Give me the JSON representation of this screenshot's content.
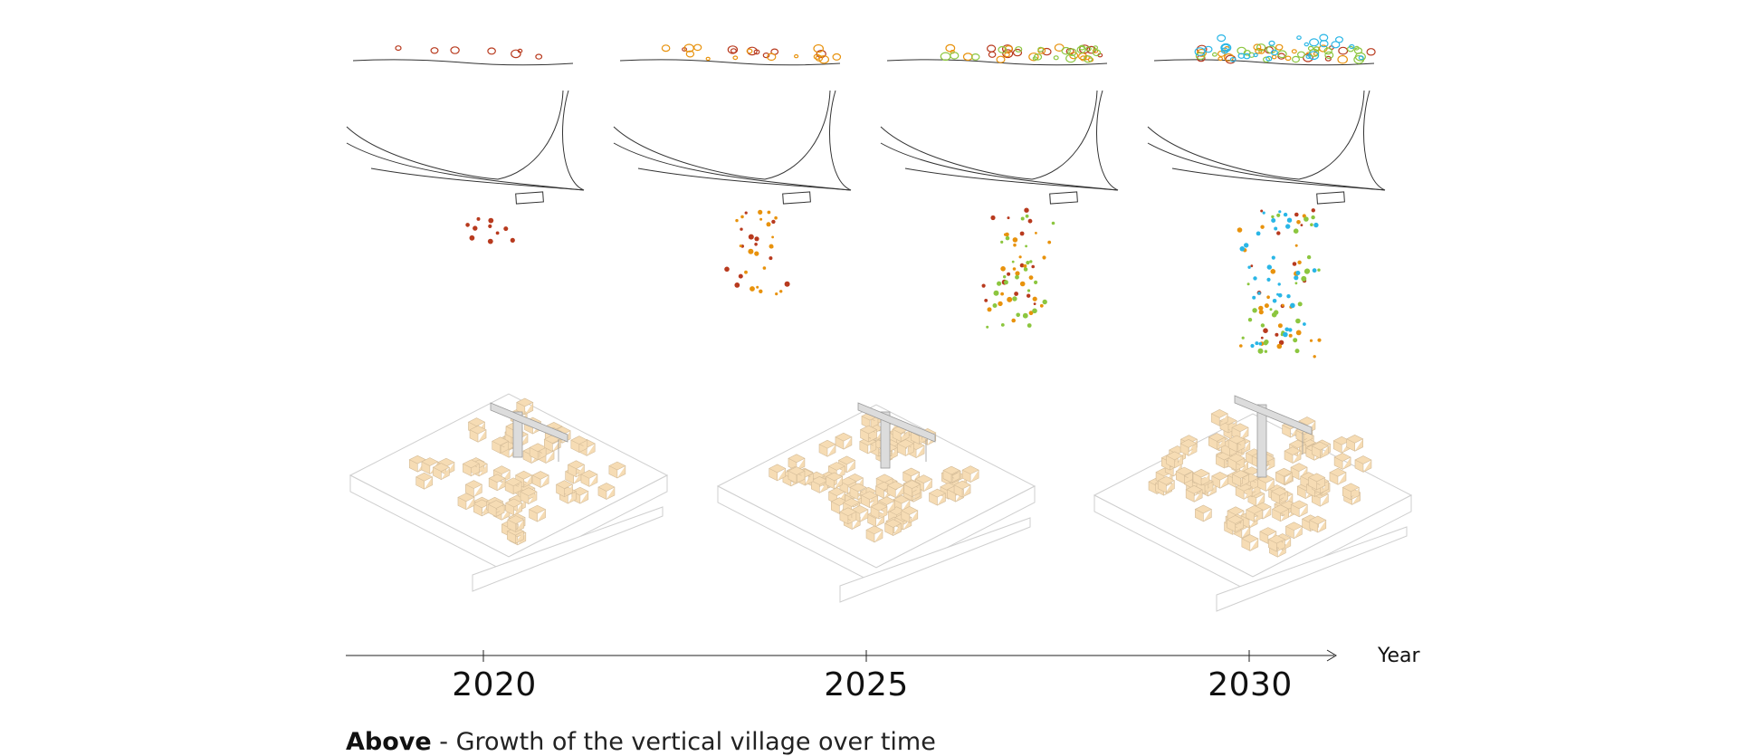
{
  "axis": {
    "title": "Year",
    "ticks": [
      "2020",
      "2025",
      "2030"
    ]
  },
  "caption": {
    "bold": "Above",
    "text": "- Growth of the vertical village over time"
  },
  "palette": {
    "red": "#b83a1e",
    "orange": "#e8920c",
    "green": "#8cc63f",
    "cyan": "#29b6e6",
    "module_fill": "#f6dcb4",
    "module_stroke": "#d4bc98",
    "line": "#333333",
    "light_line": "#cfcfcf",
    "crane": "#9a9a9a"
  },
  "stages": [
    {
      "year": "2020",
      "people": {
        "red": 10,
        "orange": 0,
        "green": 0,
        "cyan": 0
      },
      "village_growth": 0.35,
      "crane_height": 0.25
    },
    {
      "year": "2025",
      "people": {
        "red": 12,
        "orange": 20,
        "green": 0,
        "cyan": 0
      },
      "village_growth": 0.6,
      "crane_height": 0.55
    },
    {
      "year": "2030",
      "people": {
        "red": 14,
        "orange": 22,
        "green": 26,
        "cyan": 0
      },
      "village_growth": 0.8,
      "crane_height": 0.75
    },
    {
      "year": "2030+",
      "people": {
        "red": 14,
        "orange": 24,
        "green": 30,
        "cyan": 34
      },
      "village_growth": 1.0,
      "crane_height": 1.0
    }
  ]
}
